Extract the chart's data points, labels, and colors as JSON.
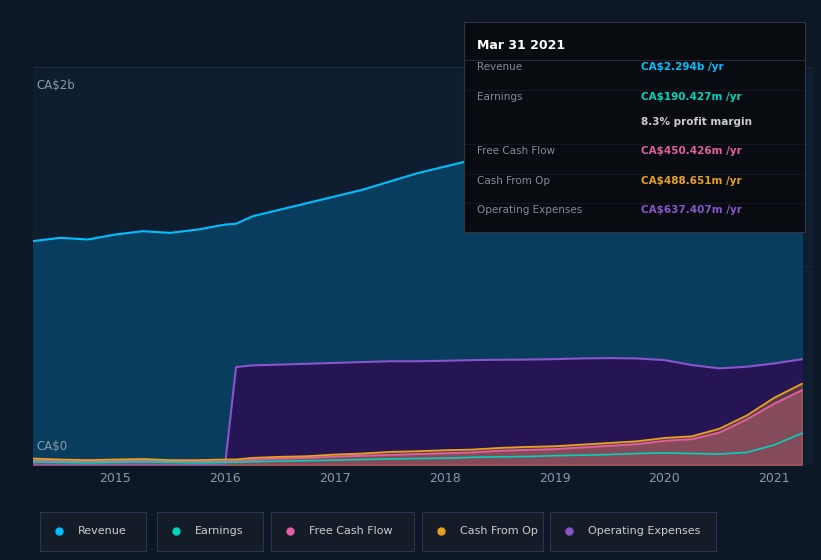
{
  "bg_color": "#0e1726",
  "plot_bg_color": "#0e1e30",
  "grid_color": "#1e3a5f",
  "ylabel_top": "CA$2b",
  "ylabel_bottom": "CA$0",
  "x_years": [
    2014.25,
    2014.5,
    2014.75,
    2015.0,
    2015.25,
    2015.5,
    2015.75,
    2016.0,
    2016.1,
    2016.25,
    2016.5,
    2016.75,
    2017.0,
    2017.25,
    2017.5,
    2017.75,
    2018.0,
    2018.25,
    2018.5,
    2018.75,
    2019.0,
    2019.25,
    2019.5,
    2019.75,
    2020.0,
    2020.25,
    2020.5,
    2020.75,
    2021.0,
    2021.25
  ],
  "revenue": [
    1350,
    1370,
    1360,
    1390,
    1410,
    1400,
    1420,
    1450,
    1455,
    1500,
    1540,
    1580,
    1620,
    1660,
    1710,
    1760,
    1800,
    1840,
    1870,
    1895,
    1915,
    1950,
    1990,
    2030,
    2070,
    2030,
    1970,
    1990,
    2070,
    2294
  ],
  "earnings": [
    18,
    15,
    12,
    15,
    18,
    15,
    12,
    15,
    15,
    18,
    22,
    25,
    28,
    32,
    35,
    38,
    40,
    45,
    48,
    50,
    55,
    58,
    62,
    68,
    72,
    68,
    65,
    75,
    120,
    190
  ],
  "free_cash_flow": [
    28,
    22,
    18,
    22,
    25,
    20,
    18,
    22,
    22,
    30,
    38,
    42,
    50,
    55,
    60,
    65,
    70,
    75,
    85,
    90,
    95,
    105,
    115,
    125,
    145,
    155,
    195,
    275,
    370,
    450
  ],
  "cash_from_op": [
    38,
    32,
    28,
    32,
    35,
    28,
    28,
    32,
    32,
    42,
    48,
    52,
    62,
    68,
    78,
    82,
    88,
    92,
    102,
    108,
    112,
    122,
    132,
    142,
    162,
    172,
    218,
    298,
    405,
    489
  ],
  "operating_expenses": [
    0,
    0,
    0,
    0,
    0,
    0,
    0,
    0,
    590,
    600,
    605,
    610,
    615,
    620,
    625,
    625,
    628,
    632,
    634,
    635,
    638,
    642,
    644,
    642,
    632,
    602,
    582,
    592,
    612,
    637
  ],
  "revenue_color": "#00bfff",
  "revenue_fill": "#093d5e",
  "earnings_color": "#00d4b8",
  "free_cash_flow_color": "#e060a0",
  "cash_from_op_color": "#e8a020",
  "op_expenses_color": "#8855cc",
  "op_expenses_fill": "#251555",
  "ylim": [
    0,
    2400
  ],
  "xlim": [
    2014.25,
    2021.35
  ],
  "xticks": [
    2015,
    2016,
    2017,
    2018,
    2019,
    2020,
    2021
  ],
  "tooltip": {
    "date": "Mar 31 2021",
    "rows": [
      {
        "label": "Revenue",
        "value": "CA$2.294b /yr",
        "value_color": "#00bfff",
        "divider_after": true
      },
      {
        "label": "Earnings",
        "value": "CA$190.427m /yr",
        "value_color": "#00d4b8",
        "divider_after": false
      },
      {
        "label": "",
        "value": "8.3% profit margin",
        "value_color": "#cccccc",
        "divider_after": true
      },
      {
        "label": "Free Cash Flow",
        "value": "CA$450.426m /yr",
        "value_color": "#e060a0",
        "divider_after": true
      },
      {
        "label": "Cash From Op",
        "value": "CA$488.651m /yr",
        "value_color": "#e8a020",
        "divider_after": true
      },
      {
        "label": "Operating Expenses",
        "value": "CA$637.407m /yr",
        "value_color": "#8855cc",
        "divider_after": false
      }
    ],
    "bg_color": "#080c10",
    "border_color": "#333344",
    "label_color": "#888899",
    "title_color": "#ffffff"
  },
  "legend_items": [
    {
      "label": "Revenue",
      "color": "#00bfff"
    },
    {
      "label": "Earnings",
      "color": "#00d4b8"
    },
    {
      "label": "Free Cash Flow",
      "color": "#e060a0"
    },
    {
      "label": "Cash From Op",
      "color": "#e8a020"
    },
    {
      "label": "Operating Expenses",
      "color": "#8855cc"
    }
  ],
  "legend_bg": "#141c28",
  "legend_border": "#2a3550"
}
